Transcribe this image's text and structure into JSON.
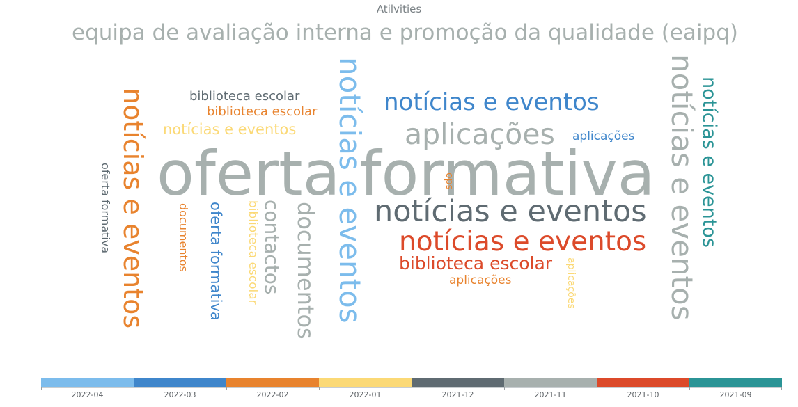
{
  "chart_data": {
    "type": "wordcloud",
    "title": "Atilvities",
    "legend": {
      "placement": "bottom",
      "categories": [
        {
          "label": "2022-04",
          "color": "#7cbcec"
        },
        {
          "label": "2022-03",
          "color": "#3f86cb"
        },
        {
          "label": "2022-02",
          "color": "#e8832e"
        },
        {
          "label": "2022-01",
          "color": "#fbd976"
        },
        {
          "label": "2021-12",
          "color": "#5f6b72"
        },
        {
          "label": "2021-11",
          "color": "#a7b0ae"
        },
        {
          "label": "2021-10",
          "color": "#dc4a2a"
        },
        {
          "label": "2021-09",
          "color": "#2b9496"
        }
      ]
    },
    "words": [
      {
        "text": "equipa de avaliação interna e promoção da qualidade (eaipq)",
        "category": "2021-11",
        "orientation": "horizontal"
      },
      {
        "text": "oferta formativa",
        "category": "2021-11",
        "orientation": "horizontal"
      },
      {
        "text": "notícias e eventos",
        "category": "2022-03",
        "orientation": "horizontal"
      },
      {
        "text": "aplicações",
        "category": "2021-11",
        "orientation": "horizontal"
      },
      {
        "text": "aplicações",
        "category": "2022-03",
        "orientation": "horizontal"
      },
      {
        "text": "notícias e eventos",
        "category": "2021-12",
        "orientation": "horizontal"
      },
      {
        "text": "notícias e eventos",
        "category": "2021-10",
        "orientation": "horizontal"
      },
      {
        "text": "biblioteca escolar",
        "category": "2021-10",
        "orientation": "horizontal"
      },
      {
        "text": "aplicações",
        "category": "2022-02",
        "orientation": "horizontal"
      },
      {
        "text": "biblioteca escolar",
        "category": "2021-12",
        "orientation": "horizontal"
      },
      {
        "text": "biblioteca escolar",
        "category": "2022-02",
        "orientation": "horizontal"
      },
      {
        "text": "notícias e eventos",
        "category": "2022-01",
        "orientation": "horizontal"
      },
      {
        "text": "notícias e eventos",
        "category": "2022-04",
        "orientation": "vertical"
      },
      {
        "text": "notícias e eventos",
        "category": "2021-11",
        "orientation": "vertical"
      },
      {
        "text": "notícias e eventos",
        "category": "2021-09",
        "orientation": "vertical"
      },
      {
        "text": "notícias e eventos",
        "category": "2022-02",
        "orientation": "vertical"
      },
      {
        "text": "oferta formativa",
        "category": "2021-12",
        "orientation": "vertical"
      },
      {
        "text": "documentos",
        "category": "2022-02",
        "orientation": "vertical"
      },
      {
        "text": "oferta formativa",
        "category": "2022-03",
        "orientation": "vertical"
      },
      {
        "text": "biblioteca escolar",
        "category": "2022-01",
        "orientation": "vertical"
      },
      {
        "text": "contactos",
        "category": "2021-11",
        "orientation": "vertical"
      },
      {
        "text": "documentos",
        "category": "2021-11",
        "orientation": "vertical"
      },
      {
        "text": "sdo",
        "category": "2022-02",
        "orientation": "vertical-up"
      },
      {
        "text": "aplicações",
        "category": "2022-01",
        "orientation": "vertical"
      }
    ]
  }
}
